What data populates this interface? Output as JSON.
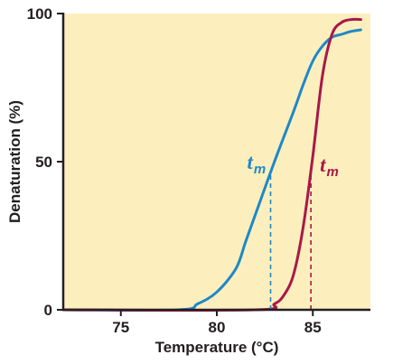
{
  "chart_data": {
    "type": "line",
    "xlabel": "Temperature (°C)",
    "ylabel": "Denaturation (%)",
    "xlim": [
      72,
      88
    ],
    "ylim": [
      0,
      100
    ],
    "x_ticks": [
      "75",
      "80",
      "85"
    ],
    "y_ticks": [
      "0",
      "50",
      "100"
    ],
    "background_color": "#fcefbd",
    "grid": false,
    "series": [
      {
        "color": "#1e88c7",
        "x": [
          72.0,
          78.0,
          79.0,
          80.0,
          81.0,
          81.5,
          82.0,
          83.0,
          84.0,
          84.5,
          85.0,
          85.5,
          86.0,
          86.5,
          87.0,
          87.5
        ],
        "y": [
          0,
          0,
          2,
          6,
          14,
          23,
          32,
          50,
          67,
          76,
          84,
          89,
          92,
          93,
          94,
          94.5
        ],
        "tm": 82.8,
        "tm_label": "t",
        "tm_sub": "m"
      },
      {
        "color": "#a8184a",
        "x": [
          72.0,
          82.0,
          83.0,
          83.5,
          84.0,
          84.5,
          85.0,
          85.5,
          86.0,
          86.5,
          87.0,
          87.5
        ],
        "y": [
          0,
          0,
          2,
          5,
          12,
          28,
          52,
          79,
          93,
          97,
          98,
          98
        ],
        "tm": 84.9,
        "tm_label": "t",
        "tm_sub": "m"
      }
    ]
  }
}
